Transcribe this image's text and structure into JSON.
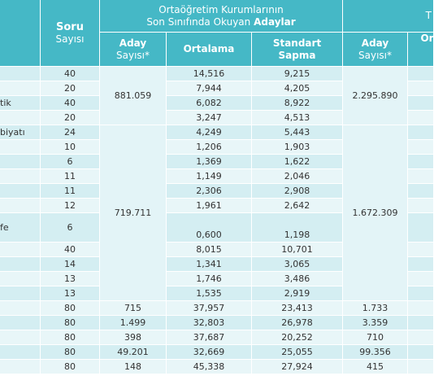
{
  "header": {
    "soru": [
      "Soru",
      "Sayısı"
    ],
    "group1": {
      "line1": "Ortaöğretim Kurumlarının",
      "line2": "Son Sınıfında Okuyan",
      "line2_bold": "Adaylar"
    },
    "group2": "T",
    "sub": {
      "aday": [
        "Aday",
        "Sayısı*"
      ],
      "ortalama": "Ortalama",
      "sapma": [
        "Standart",
        "Sapma"
      ],
      "aday2": [
        "Aday",
        "Sayısı*"
      ],
      "ort2": "Or"
    }
  },
  "rows": [
    {
      "soru": "40",
      "ortalama": "14,516",
      "sapma": "9,215"
    },
    {
      "soru": "20",
      "ortalama": "7,944",
      "sapma": "4,205"
    },
    {
      "label": "tik",
      "soru": "40",
      "ortalama": "6,082",
      "sapma": "8,922"
    },
    {
      "soru": "20",
      "ortalama": "3,247",
      "sapma": "4,513"
    },
    {
      "label": "biyatı",
      "soru": "24",
      "ortalama": "4,249",
      "sapma": "5,443"
    },
    {
      "soru": "10",
      "ortalama": "1,206",
      "sapma": "1,903"
    },
    {
      "soru": "6",
      "ortalama": "1,369",
      "sapma": "1,622"
    },
    {
      "soru": "11",
      "ortalama": "1,149",
      "sapma": "2,046"
    },
    {
      "soru": "11",
      "ortalama": "2,306",
      "sapma": "2,908"
    },
    {
      "soru": "12",
      "ortalama": "1,961",
      "sapma": "2,642"
    },
    {
      "label": "fe",
      "soru": "6",
      "ortalama": "0,600",
      "sapma": "1,198"
    },
    {
      "soru": "40",
      "ortalama": "8,015",
      "sapma": "10,701"
    },
    {
      "soru": "14",
      "ortalama": "1,341",
      "sapma": "3,065"
    },
    {
      "soru": "13",
      "ortalama": "1,746",
      "sapma": "3,486"
    },
    {
      "soru": "13",
      "ortalama": "1,535",
      "sapma": "2,919"
    },
    {
      "soru": "80",
      "aday": "715",
      "ortalama": "37,957",
      "sapma": "23,413",
      "aday2": "1.733"
    },
    {
      "soru": "80",
      "aday": "1.499",
      "ortalama": "32,803",
      "sapma": "26,978",
      "aday2": "3.359"
    },
    {
      "soru": "80",
      "aday": "398",
      "ortalama": "37,687",
      "sapma": "20,252",
      "aday2": "710"
    },
    {
      "soru": "80",
      "aday": "49.201",
      "ortalama": "32,669",
      "sapma": "25,055",
      "aday2": "99.356"
    },
    {
      "soru": "80",
      "aday": "148",
      "ortalama": "45,338",
      "sapma": "27,924",
      "aday2": "415"
    }
  ],
  "merged": [
    {
      "first": 0,
      "last": 3,
      "aday": "881.059",
      "aday2": "2.295.890"
    },
    {
      "first": 4,
      "last": 14,
      "aday": "719.711",
      "aday2": "1.672.309"
    }
  ]
}
